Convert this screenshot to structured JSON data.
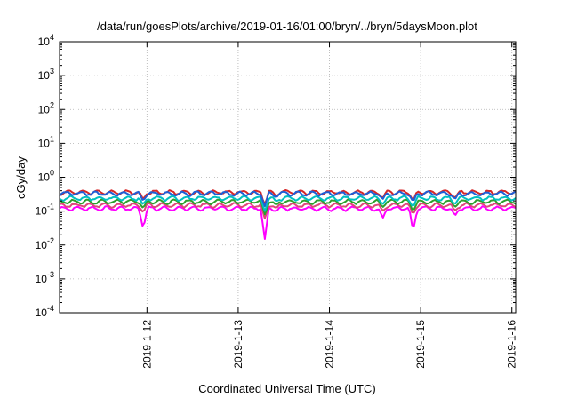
{
  "chart_data": {
    "type": "line",
    "title": "/data/run/goesPlots/archive/2019-01-16/01:00/bryn/../bryn/5daysMoon.plot",
    "xlabel": "Coordinated Universal Time (UTC)",
    "ylabel": "cGy/day",
    "y_scale": "log",
    "ylim": [
      0.0001,
      10000
    ],
    "y_ticks": [
      {
        "value": 0.0001,
        "base": "10",
        "exp": "-4"
      },
      {
        "value": 0.001,
        "base": "10",
        "exp": "-3"
      },
      {
        "value": 0.01,
        "base": "10",
        "exp": "-2"
      },
      {
        "value": 0.1,
        "base": "10",
        "exp": "-1"
      },
      {
        "value": 1,
        "base": "10",
        "exp": "0"
      },
      {
        "value": 10,
        "base": "10",
        "exp": "1"
      },
      {
        "value": 100,
        "base": "10",
        "exp": "2"
      },
      {
        "value": 1000,
        "base": "10",
        "exp": "3"
      },
      {
        "value": 10000,
        "base": "10",
        "exp": "4"
      }
    ],
    "xlim": [
      "2019-01-11 01:00",
      "2019-01-16 01:00"
    ],
    "x_ticks": [
      "2019-1-12",
      "2019-1-13",
      "2019-1-14",
      "2019-1-15",
      "2019-1-16"
    ],
    "grid": true,
    "dip_times": [
      "2019-01-11 23:00",
      "2019-01-13 07:00",
      "2019-01-14 22:00",
      "2019-01-15 09:00",
      "2019-01-13 10:00",
      "2019-01-14 14:00"
    ],
    "series": [
      {
        "color": "#ff00ff",
        "base": 0.12,
        "dips": [
          0.03,
          0.015,
          0.025,
          0.07,
          0.1,
          0.06
        ]
      },
      {
        "color": "#e0457b",
        "base": 0.15,
        "dips": [
          0.09,
          0.06,
          0.08,
          0.1,
          0.12,
          0.1
        ]
      },
      {
        "color": "#2ca02c",
        "base": 0.19,
        "dips": [
          0.12,
          0.08,
          0.1,
          0.13,
          0.15,
          0.13
        ]
      },
      {
        "color": "#00c0c0",
        "base": 0.24,
        "dips": [
          0.15,
          0.1,
          0.13,
          0.16,
          0.19,
          0.16
        ]
      },
      {
        "color": "#d62728",
        "base": 0.36,
        "dips": [
          0.22,
          0.16,
          0.2,
          0.24,
          0.28,
          0.24
        ]
      },
      {
        "color": "#1f5fd6",
        "base": 0.33,
        "dips": [
          0.2,
          0.14,
          0.18,
          0.22,
          0.26,
          0.22
        ]
      }
    ]
  }
}
